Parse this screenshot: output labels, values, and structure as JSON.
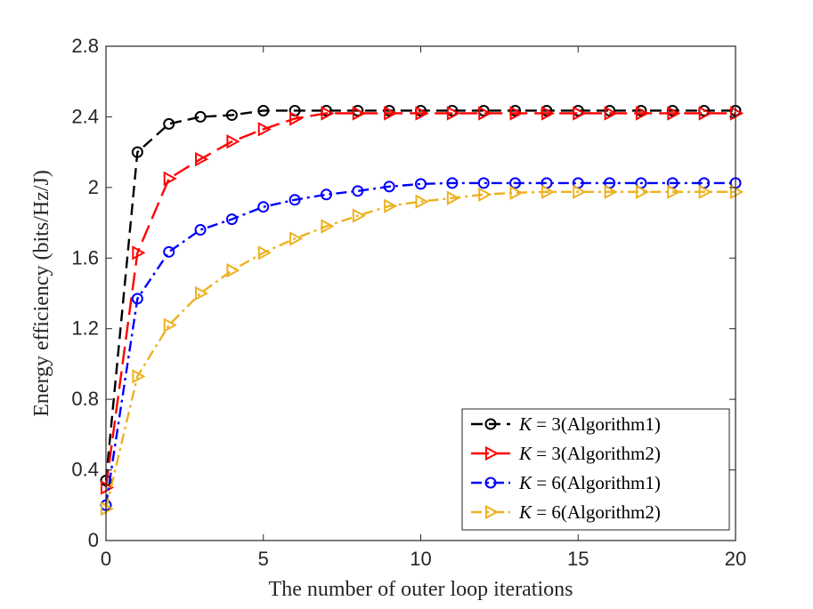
{
  "chart_data": {
    "type": "line",
    "title": "",
    "xlabel": "The number of outer loop iterations",
    "ylabel": "Energy efficiency (bits/Hz/J)",
    "xlim": [
      0,
      20
    ],
    "ylim": [
      0,
      2.8
    ],
    "xticks": [
      0,
      5,
      10,
      15,
      20
    ],
    "xtick_labels": [
      "0",
      "5",
      "10",
      "15",
      "20"
    ],
    "yticks": [
      0,
      0.4,
      0.8,
      1.2,
      1.6,
      2,
      2.4,
      2.8
    ],
    "ytick_labels": [
      "0",
      "0.4",
      "0.8",
      "1.2",
      "1.6",
      "2",
      "2.4",
      "2.8"
    ],
    "grid": false,
    "legend_position": "bottom-right",
    "x": [
      0,
      1,
      2,
      3,
      4,
      5,
      6,
      7,
      8,
      9,
      10,
      11,
      12,
      13,
      14,
      15,
      16,
      17,
      18,
      19,
      20
    ],
    "series": [
      {
        "name": "K = 3(Algorithm1)",
        "legend_var": "K",
        "legend_rest": " = 3(Algorithm1)",
        "color": "#000000",
        "marker": "circle",
        "dash": "dashed",
        "values": [
          0.34,
          2.2,
          2.36,
          2.4,
          2.41,
          2.435,
          2.435,
          2.435,
          2.435,
          2.435,
          2.435,
          2.435,
          2.435,
          2.435,
          2.435,
          2.435,
          2.435,
          2.435,
          2.435,
          2.435,
          2.435
        ]
      },
      {
        "name": "K = 3(Algorithm2)",
        "legend_var": "K",
        "legend_rest": " = 3(Algorithm2)",
        "color": "#ff0000",
        "marker": "triangle-right",
        "dash": "longdash",
        "values": [
          0.3,
          1.63,
          2.05,
          2.16,
          2.26,
          2.33,
          2.39,
          2.42,
          2.42,
          2.42,
          2.42,
          2.42,
          2.42,
          2.42,
          2.42,
          2.42,
          2.42,
          2.42,
          2.42,
          2.42,
          2.42
        ]
      },
      {
        "name": "K = 6(Algorithm1)",
        "legend_var": "K",
        "legend_rest": " = 6(Algorithm1)",
        "color": "#0000ff",
        "marker": "circle",
        "dash": "dashdot",
        "values": [
          0.2,
          1.37,
          1.635,
          1.76,
          1.82,
          1.89,
          1.93,
          1.96,
          1.98,
          2.005,
          2.02,
          2.025,
          2.025,
          2.025,
          2.025,
          2.025,
          2.025,
          2.025,
          2.025,
          2.025,
          2.025
        ]
      },
      {
        "name": "K = 6(Algorithm2)",
        "legend_var": "K",
        "legend_rest": " = 6(Algorithm2)",
        "color": "#edb120",
        "marker": "triangle-right",
        "dash": "dashdot",
        "values": [
          0.18,
          0.93,
          1.22,
          1.4,
          1.53,
          1.63,
          1.71,
          1.78,
          1.84,
          1.895,
          1.92,
          1.94,
          1.96,
          1.97,
          1.975,
          1.975,
          1.975,
          1.975,
          1.975,
          1.975,
          1.975
        ]
      }
    ]
  }
}
